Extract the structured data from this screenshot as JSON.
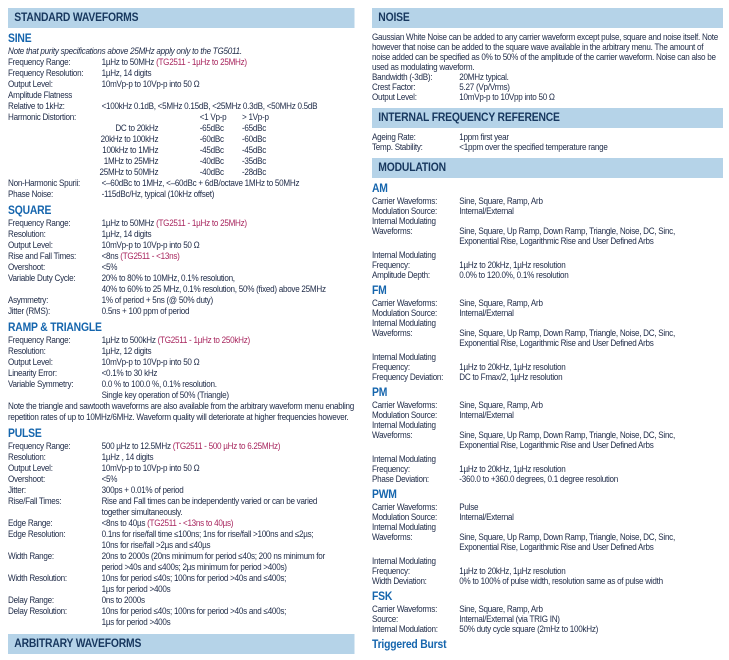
{
  "colors": {
    "banner_bg": "#b5d3e8",
    "banner_text": "#17375e",
    "heading": "#1565ad",
    "body": "#1e2a47",
    "accent": "#a8265e"
  },
  "left_column": [
    {
      "kind": "banner",
      "name": "standard-waveforms",
      "text": "STANDARD WAVEFORMS"
    },
    {
      "kind": "heading",
      "name": "sine",
      "text": "SINE"
    },
    {
      "kind": "note",
      "italic": true,
      "text": "Note that purity specifications above 25MHz apply only to the TG5011."
    },
    {
      "kind": "row",
      "label": "Frequency Range:",
      "segments": [
        {
          "t": "1µHz to 50MHz "
        },
        {
          "t": "(TG2511 - 1µHz to 25MHz)",
          "accent": true
        }
      ]
    },
    {
      "kind": "row",
      "label": "Frequency Resolution:",
      "value": "1µHz, 14 digits"
    },
    {
      "kind": "row",
      "label": "Output Level:",
      "value": "10mVp-p to 10Vp-p into 50 Ω"
    },
    {
      "kind": "row",
      "label": "Amplitude Flatness",
      "value": ""
    },
    {
      "kind": "row",
      "label": "Relative to 1kHz:",
      "value": "<100kHz 0.1dB, <5MHz 0.15dB, <25MHz 0.3dB, <50MHz 0.5dB"
    },
    {
      "kind": "table",
      "label": "Harmonic Distortion:",
      "col_headers": [
        "<1 Vp-p",
        "> 1Vp-p"
      ],
      "rows": [
        [
          "DC to 20kHz",
          "-65dBc",
          "-65dBc"
        ],
        [
          "20kHz to 100kHz",
          "-60dBc",
          "-60dBc"
        ],
        [
          "100kHz to 1MHz",
          "-45dBc",
          "-45dBc"
        ],
        [
          "1MHz to 25MHz",
          "-40dBc",
          "-35dBc"
        ],
        [
          "25MHz to 50MHz",
          "-40dBc",
          "-28dBc"
        ]
      ]
    },
    {
      "kind": "row",
      "label": "Non-Harmonic Spurii:",
      "value": "<–60dBc to 1MHz, <–60dBc + 6dB/octave 1MHz to 50MHz"
    },
    {
      "kind": "row",
      "label": "Phase Noise:",
      "value": "-115dBc/Hz, typical (10kHz offset)"
    },
    {
      "kind": "heading",
      "name": "square",
      "text": "SQUARE"
    },
    {
      "kind": "row",
      "label": "Frequency Range:",
      "segments": [
        {
          "t": "1µHz to 50MHz "
        },
        {
          "t": "(TG2511 - 1µHz to 25MHz)",
          "accent": true
        }
      ]
    },
    {
      "kind": "row",
      "label": "Resolution:",
      "value": "1µHz, 14 digits"
    },
    {
      "kind": "row",
      "label": "Output Level:",
      "value": "10mVp-p to 10Vp-p into 50 Ω"
    },
    {
      "kind": "row",
      "label": "Rise and Fall Times:",
      "segments": [
        {
          "t": "<8ns "
        },
        {
          "t": "(TG2511 - <13ns)",
          "accent": true
        }
      ]
    },
    {
      "kind": "row",
      "label": "Overshoot:",
      "value": "<5%"
    },
    {
      "kind": "row",
      "label": "Variable Duty Cycle:",
      "segments": [
        {
          "t": "20% to 80% to 10MHz, 0.1% resolution,"
        },
        {
          "br": true
        },
        {
          "t": "40% to 60% to 25 MHz, 0.1% resolution, 50% (fixed) above 25MHz"
        }
      ]
    },
    {
      "kind": "row",
      "label": "Asymmetry:",
      "value": "1% of period + 5ns (@ 50% duty)"
    },
    {
      "kind": "row",
      "label": "Jitter (RMS):",
      "value": "0.5ns + 100 ppm of period"
    },
    {
      "kind": "heading",
      "name": "ramp-triangle",
      "text": "RAMP & TRIANGLE"
    },
    {
      "kind": "row",
      "label": "Frequency Range:",
      "segments": [
        {
          "t": "1µHz to 500kHz "
        },
        {
          "t": "(TG2511 - 1µHz to 250kHz)",
          "accent": true
        }
      ]
    },
    {
      "kind": "row",
      "label": "Resolution:",
      "value": "1µHz, 12 digits"
    },
    {
      "kind": "row",
      "label": "Output Level:",
      "value": "10mVp-p to 10Vp-p into 50 Ω"
    },
    {
      "kind": "row",
      "label": "Linearity Error:",
      "value": "<0.1% to 30 kHz"
    },
    {
      "kind": "row",
      "label": "Variable Symmetry:",
      "segments": [
        {
          "t": "0.0 % to 100.0 %, 0.1% resolution."
        },
        {
          "br": true
        },
        {
          "t": "Single key operation of 50% (Triangle)"
        }
      ]
    },
    {
      "kind": "note",
      "text": "Note the triangle and sawtooth waveforms are also available from the arbitrary waveform menu enabling repetition rates of up to 10MHz/6MHz. Waveform quality will deteriorate at higher frequencies however."
    },
    {
      "kind": "heading",
      "name": "pulse",
      "text": "PULSE"
    },
    {
      "kind": "row",
      "label": "Frequency Range:",
      "segments": [
        {
          "t": "500 µHz to 12.5MHz "
        },
        {
          "t": "(TG2511 - 500 µHz to 6.25MHz)",
          "accent": true
        }
      ]
    },
    {
      "kind": "row",
      "label": "Resolution:",
      "value": "1µHz , 14 digits"
    },
    {
      "kind": "row",
      "label": "Output Level:",
      "value": "10mVp-p to 10Vp-p into 50 Ω"
    },
    {
      "kind": "row",
      "label": "Overshoot:",
      "value": "<5%"
    },
    {
      "kind": "row",
      "label": "Jitter:",
      "value": "300ps + 0.01% of period"
    },
    {
      "kind": "row",
      "label": "Rise/Fall Times:",
      "segments": [
        {
          "t": "Rise and Fall times can be independently varied or can be varied"
        },
        {
          "br": true
        },
        {
          "t": "together simultaneously."
        }
      ]
    },
    {
      "kind": "row",
      "label": "Edge Range:",
      "segments": [
        {
          "t": "<8ns to 40µs "
        },
        {
          "t": "(TG2511 - <13ns to 40µs)",
          "accent": true
        }
      ]
    },
    {
      "kind": "row",
      "label": "Edge Resolution:",
      "segments": [
        {
          "t": "0.1ns for rise/fall time ≤100ns; 1ns for rise/fall >100ns and ≤2µs;"
        },
        {
          "br": true
        },
        {
          "t": "10ns for rise/fall >2µs and ≤40µs"
        }
      ]
    },
    {
      "kind": "row",
      "label": "Width Range:",
      "segments": [
        {
          "t": "20ns to 2000s (20ns minimum for period ≤40s; 200 ns minimum for"
        },
        {
          "br": true
        },
        {
          "t": "period >40s and ≤400s; 2µs minimum for period >400s)"
        }
      ]
    },
    {
      "kind": "row",
      "label": "Width Resolution:",
      "segments": [
        {
          "t": "10ns for period ≤40s; 100ns for period >40s and ≤400s;"
        },
        {
          "br": true
        },
        {
          "t": "1µs for period >400s"
        }
      ]
    },
    {
      "kind": "row",
      "label": "Delay Range:",
      "value": "0ns to 2000s"
    },
    {
      "kind": "row",
      "label": "Delay Resolution:",
      "segments": [
        {
          "t": "10ns for period ≤40s; 100ns for period >40s and ≤400s;"
        },
        {
          "br": true
        },
        {
          "t": "1µs for period >400s"
        }
      ]
    },
    {
      "kind": "banner",
      "name": "arbitrary-waveforms",
      "text": "ARBITRARY WAVEFORMS"
    }
  ],
  "right_column": [
    {
      "kind": "banner",
      "name": "noise",
      "text": "NOISE"
    },
    {
      "kind": "note",
      "text": "Gaussian White Noise can be added to any carrier waveform except pulse, square and noise itself. Note however that noise can be added to the square wave available in the arbitrary menu. The amount of noise added can be specified as 0% to 50% of the amplitude of the carrier waveform. Noise can also be used as modulating waveform."
    },
    {
      "kind": "row",
      "label": "Bandwidth (-3dB):",
      "value": "20MHz typical."
    },
    {
      "kind": "row",
      "label": "Crest Factor:",
      "value": "5.27 (Vp/Vrms)"
    },
    {
      "kind": "row",
      "label": "Output Level:",
      "value": "10mVp-p to 10Vpp into 50 Ω"
    },
    {
      "kind": "banner",
      "name": "internal-frequency-reference",
      "text": "INTERNAL FREQUENCY REFERENCE"
    },
    {
      "kind": "row",
      "label": "Ageing Rate:",
      "value": "1ppm first year"
    },
    {
      "kind": "row",
      "label": "Temp. Stability:",
      "value": "<1ppm over the specified temperature range"
    },
    {
      "kind": "banner",
      "name": "modulation",
      "text": "MODULATION"
    },
    {
      "kind": "heading",
      "name": "am",
      "text": "AM"
    },
    {
      "kind": "row",
      "label": "Carrier Waveforms:",
      "value": "Sine, Square, Ramp, Arb"
    },
    {
      "kind": "row",
      "label": "Modulation Source:",
      "value": "Internal/External"
    },
    {
      "kind": "row",
      "label": "Internal Modulating",
      "value": ""
    },
    {
      "kind": "row",
      "label": "Waveforms:",
      "segments": [
        {
          "t": "Sine, Square, Up Ramp, Down Ramp, Triangle, Noise, DC, Sinc,"
        },
        {
          "br": true
        },
        {
          "t": "Exponential Rise, Logarithmic Rise and User Defined Arbs"
        }
      ]
    },
    {
      "kind": "spacer"
    },
    {
      "kind": "row",
      "label": "Internal Modulating",
      "value": ""
    },
    {
      "kind": "row",
      "label": "Frequency:",
      "value": "1µHz to 20kHz, 1µHz resolution"
    },
    {
      "kind": "row",
      "label": "Amplitude Depth:",
      "value": "0.0% to 120.0%, 0.1% resolution"
    },
    {
      "kind": "heading",
      "name": "fm",
      "text": "FM"
    },
    {
      "kind": "row",
      "label": "Carrier Waveforms:",
      "value": "Sine, Square, Ramp, Arb"
    },
    {
      "kind": "row",
      "label": "Modulation Source:",
      "value": "Internal/External"
    },
    {
      "kind": "row",
      "label": "Internal Modulating",
      "value": ""
    },
    {
      "kind": "row",
      "label": "Waveforms:",
      "segments": [
        {
          "t": "Sine, Square, Up Ramp, Down Ramp, Triangle, Noise, DC, Sinc,"
        },
        {
          "br": true
        },
        {
          "t": "Exponential Rise, Logarithmic Rise and User Defined Arbs"
        }
      ]
    },
    {
      "kind": "spacer"
    },
    {
      "kind": "row",
      "label": "Internal Modulating",
      "value": ""
    },
    {
      "kind": "row",
      "label": "Frequency:",
      "value": "1µHz to 20kHz, 1µHz resolution"
    },
    {
      "kind": "row",
      "label": "Frequency Deviation:",
      "value": "DC to Fmax/2, 1µHz resolution"
    },
    {
      "kind": "heading",
      "name": "pm",
      "text": "PM"
    },
    {
      "kind": "row",
      "label": "Carrier Waveforms:",
      "value": "Sine, Square, Ramp, Arb"
    },
    {
      "kind": "row",
      "label": "Modulation Source:",
      "value": "Internal/External"
    },
    {
      "kind": "row",
      "label": "Internal Modulating",
      "value": ""
    },
    {
      "kind": "row",
      "label": "Waveforms:",
      "segments": [
        {
          "t": "Sine, Square, Up Ramp, Down Ramp, Triangle, Noise, DC, Sinc,"
        },
        {
          "br": true
        },
        {
          "t": "Exponential Rise, Logarithmic Rise and User Defined Arbs"
        }
      ]
    },
    {
      "kind": "spacer"
    },
    {
      "kind": "row",
      "label": "Internal Modulating",
      "value": ""
    },
    {
      "kind": "row",
      "label": "Frequency:",
      "value": "1µHz to 20kHz, 1µHz resolution"
    },
    {
      "kind": "row",
      "label": "Phase Deviation:",
      "value": "-360.0 to +360.0 degrees, 0.1 degree resolution"
    },
    {
      "kind": "heading",
      "name": "pwm",
      "text": "PWM"
    },
    {
      "kind": "row",
      "label": "Carrier Waveforms:",
      "value": "Pulse"
    },
    {
      "kind": "row",
      "label": "Modulation Source:",
      "value": "Internal/External"
    },
    {
      "kind": "row",
      "label": "Internal Modulating",
      "value": ""
    },
    {
      "kind": "row",
      "label": "Waveforms:",
      "segments": [
        {
          "t": "Sine, Square, Up Ramp, Down Ramp, Triangle, Noise, DC, Sinc,"
        },
        {
          "br": true
        },
        {
          "t": "Exponential Rise, Logarithmic Rise and User Defined Arbs"
        }
      ]
    },
    {
      "kind": "spacer"
    },
    {
      "kind": "row",
      "label": "Internal Modulating",
      "value": ""
    },
    {
      "kind": "row",
      "label": "Frequency:",
      "value": "1µHz to 20kHz, 1µHz resolution"
    },
    {
      "kind": "row",
      "label": "Width Deviation:",
      "value": "0% to 100% of pulse width, resolution same as of pulse width"
    },
    {
      "kind": "heading",
      "name": "fsk",
      "text": "FSK"
    },
    {
      "kind": "row",
      "label": "Carrier Waveforms:",
      "value": "Sine, Square, Ramp, Arb"
    },
    {
      "kind": "row",
      "label": "Source:",
      "value": "Internal/External (via TRIG IN)"
    },
    {
      "kind": "row",
      "label": "Internal Modulation:",
      "value": "50% duty cycle square (2mHz to 100kHz)"
    },
    {
      "kind": "heading",
      "name": "triggered-burst",
      "text": "Triggered Burst"
    }
  ]
}
